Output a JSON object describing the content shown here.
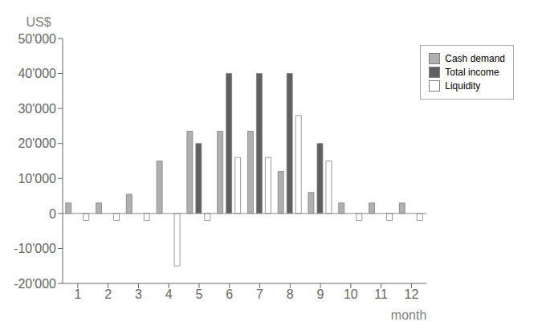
{
  "chart_data": {
    "type": "bar",
    "xlabel": "month",
    "ylabel": "US$",
    "categories": [
      "1",
      "2",
      "3",
      "4",
      "5",
      "6",
      "7",
      "8",
      "9",
      "10",
      "11",
      "12"
    ],
    "series": [
      {
        "name": "Cash demand",
        "color": "#b0b0b0",
        "values": [
          3000,
          3000,
          5500,
          15000,
          23500,
          23500,
          23500,
          12000,
          6000,
          3000,
          3000,
          3000
        ]
      },
      {
        "name": "Total income",
        "color": "#606060",
        "values": [
          0,
          0,
          0,
          0,
          20000,
          40000,
          40000,
          40000,
          20000,
          0,
          0,
          0
        ]
      },
      {
        "name": "Liquidity",
        "color": "#ffffff",
        "values": [
          -2000,
          -2000,
          -2000,
          -15000,
          -2000,
          16000,
          16000,
          28000,
          15000,
          -2000,
          -2000,
          -2000
        ]
      }
    ],
    "ylim": [
      -20000,
      50000
    ],
    "yticks": [
      {
        "value": -20000,
        "label": "-20'000"
      },
      {
        "value": -10000,
        "label": "-10'000"
      },
      0,
      {
        "value": 10000,
        "label": "10'000"
      },
      {
        "value": 20000,
        "label": "20'000"
      },
      {
        "value": 30000,
        "label": "30'000"
      },
      {
        "value": 40000,
        "label": "40'000"
      },
      {
        "value": 50000,
        "label": "50'000"
      }
    ],
    "grid": false,
    "legend": "upper right"
  }
}
